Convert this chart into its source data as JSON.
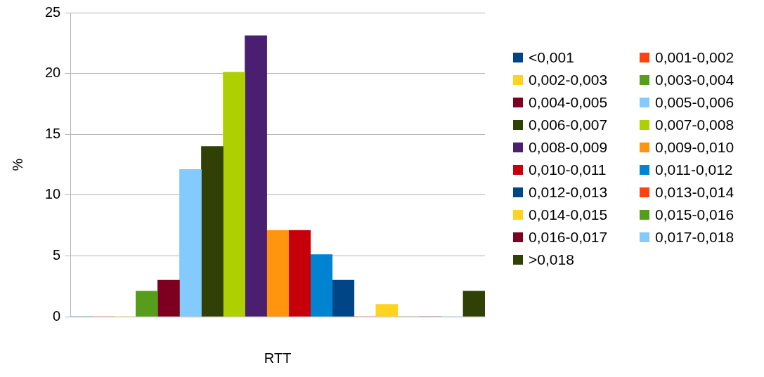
{
  "chart_data": {
    "type": "bar",
    "xlabel": "RTT",
    "ylabel": "%",
    "categories": [
      null
    ],
    "series": [
      {
        "name": "<0,001",
        "color": "#004586",
        "values": [
          0
        ]
      },
      {
        "name": "0,001-0,002",
        "color": "#ff420e",
        "values": [
          0
        ]
      },
      {
        "name": "0,002-0,003",
        "color": "#ffd320",
        "values": [
          0
        ]
      },
      {
        "name": "0,003-0,004",
        "color": "#579d1c",
        "values": [
          2.1
        ]
      },
      {
        "name": "0,004-0,005",
        "color": "#7e0021",
        "values": [
          3
        ]
      },
      {
        "name": "0,005-0,006",
        "color": "#83caff",
        "values": [
          12.1
        ]
      },
      {
        "name": "0,006-0,007",
        "color": "#314004",
        "values": [
          14
        ]
      },
      {
        "name": "0,007-0,008",
        "color": "#aecf00",
        "values": [
          20.1
        ]
      },
      {
        "name": "0,008-0,009",
        "color": "#4b1f6f",
        "values": [
          23.1
        ]
      },
      {
        "name": "0,009-0,010",
        "color": "#ff950e",
        "values": [
          7.1
        ]
      },
      {
        "name": "0,010-0,011",
        "color": "#c5000b",
        "values": [
          7.1
        ]
      },
      {
        "name": "0,011-0,012",
        "color": "#0084d1",
        "values": [
          5.1
        ]
      },
      {
        "name": "0,012-0,013",
        "color": "#004586",
        "values": [
          3
        ]
      },
      {
        "name": "0,013-0,014",
        "color": "#ff420e",
        "values": [
          0
        ]
      },
      {
        "name": "0,014-0,015",
        "color": "#ffd320",
        "values": [
          1
        ]
      },
      {
        "name": "0,015-0,016",
        "color": "#579d1c",
        "values": [
          0
        ]
      },
      {
        "name": "0,016-0,017",
        "color": "#7e0021",
        "values": [
          0
        ]
      },
      {
        "name": "0,017-0,018",
        "color": "#83caff",
        "values": [
          0
        ]
      },
      {
        "name": ">0,018",
        "color": "#314004",
        "values": [
          2.1
        ]
      }
    ],
    "ylim": [
      0,
      25
    ],
    "yticks": [
      0,
      5,
      10,
      15,
      20,
      25
    ],
    "grid": "y",
    "legend": "right"
  }
}
